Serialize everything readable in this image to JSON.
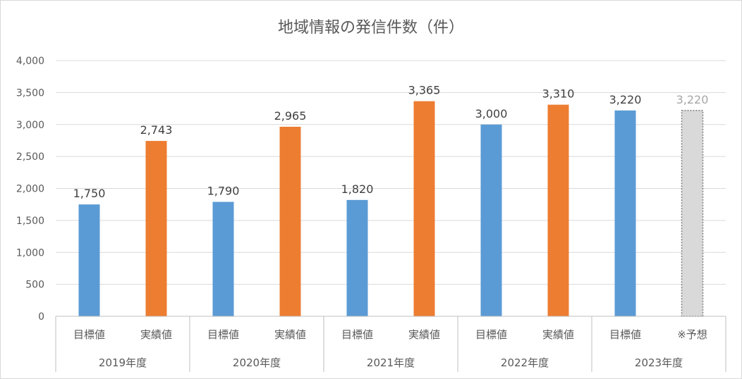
{
  "chart_data": {
    "type": "bar",
    "title": "地域情報の発信件数（件）",
    "ylim": [
      0,
      4000
    ],
    "yticks": [
      "0",
      "500",
      "1,000",
      "1,500",
      "2,000",
      "2,500",
      "3,000",
      "3,500",
      "4,000"
    ],
    "ytick_values": [
      0,
      500,
      1000,
      1500,
      2000,
      2500,
      3000,
      3500,
      4000
    ],
    "grid": true,
    "groups": [
      "2019年度",
      "2020年度",
      "2021年度",
      "2022年度",
      "2023年度"
    ],
    "categories": [
      "目標値",
      "実績値",
      "目標値",
      "実績値",
      "目標値",
      "実績値",
      "目標値",
      "実績値",
      "目標値",
      "※予想"
    ],
    "values": [
      1750,
      2743,
      1790,
      2965,
      1820,
      3365,
      3000,
      3310,
      3220,
      3220
    ],
    "value_labels": [
      "1,750",
      "2,743",
      "1,790",
      "2,965",
      "1,820",
      "3,365",
      "3,000",
      "3,310",
      "3,220",
      "3,220"
    ],
    "kinds": [
      "target",
      "actual",
      "target",
      "actual",
      "target",
      "actual",
      "target",
      "actual",
      "target",
      "forecast"
    ],
    "colors": {
      "target": "#5b9bd5",
      "actual": "#ed7d31",
      "forecast": "#d9d9d9",
      "forecast_border": "#7f7f7f",
      "grid": "#d9d9d9",
      "axis": "#bfbfbf"
    }
  }
}
